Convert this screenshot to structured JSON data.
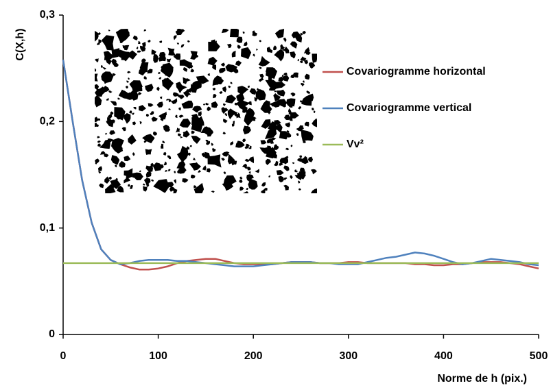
{
  "chart_data": {
    "type": "line",
    "y_label": "C(X,h)",
    "x_label": "Norme de h (pix.)",
    "x": [
      0,
      10,
      20,
      30,
      40,
      50,
      60,
      70,
      80,
      90,
      100,
      110,
      120,
      130,
      140,
      150,
      160,
      170,
      180,
      190,
      200,
      210,
      220,
      230,
      240,
      250,
      260,
      270,
      280,
      290,
      300,
      310,
      320,
      330,
      340,
      350,
      360,
      370,
      380,
      390,
      400,
      410,
      420,
      430,
      440,
      450,
      460,
      470,
      480,
      490,
      500
    ],
    "series": [
      {
        "name": "Covariogramme horizontal",
        "color": "#c0504d",
        "values": [
          0.258,
          0.2,
          0.145,
          0.105,
          0.08,
          0.07,
          0.066,
          0.063,
          0.061,
          0.061,
          0.062,
          0.064,
          0.067,
          0.069,
          0.07,
          0.071,
          0.071,
          0.069,
          0.067,
          0.066,
          0.066,
          0.066,
          0.066,
          0.067,
          0.068,
          0.068,
          0.068,
          0.067,
          0.067,
          0.067,
          0.068,
          0.068,
          0.067,
          0.067,
          0.067,
          0.067,
          0.067,
          0.066,
          0.066,
          0.065,
          0.065,
          0.066,
          0.066,
          0.067,
          0.068,
          0.068,
          0.068,
          0.067,
          0.066,
          0.064,
          0.062
        ]
      },
      {
        "name": "Covariogramme vertical",
        "color": "#4f81bd",
        "values": [
          0.258,
          0.2,
          0.145,
          0.105,
          0.08,
          0.07,
          0.066,
          0.067,
          0.069,
          0.07,
          0.07,
          0.07,
          0.069,
          0.069,
          0.068,
          0.067,
          0.066,
          0.065,
          0.064,
          0.064,
          0.064,
          0.065,
          0.066,
          0.067,
          0.068,
          0.068,
          0.068,
          0.067,
          0.067,
          0.066,
          0.066,
          0.066,
          0.068,
          0.07,
          0.072,
          0.073,
          0.075,
          0.077,
          0.076,
          0.074,
          0.071,
          0.068,
          0.066,
          0.067,
          0.069,
          0.071,
          0.07,
          0.069,
          0.068,
          0.066,
          0.065
        ]
      },
      {
        "name": "Vv²",
        "color": "#9bbb59",
        "x": [
          0,
          500
        ],
        "values": [
          0.067,
          0.067
        ]
      }
    ],
    "xlim": [
      0,
      500
    ],
    "xticks": [
      0,
      100,
      200,
      300,
      400,
      500
    ],
    "ylim": [
      0,
      0.3
    ],
    "yticks": [
      {
        "value": 0,
        "label": "0"
      },
      {
        "value": 0.1,
        "label": "0,1"
      },
      {
        "value": 0.2,
        "label": "0,2"
      },
      {
        "value": 0.3,
        "label": "0,3"
      }
    ]
  }
}
